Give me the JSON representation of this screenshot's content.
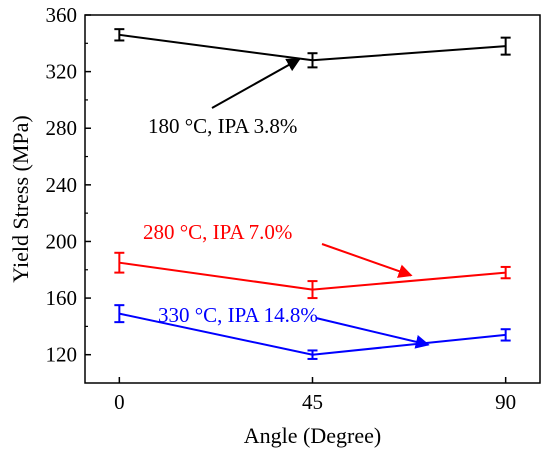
{
  "chart_data": {
    "type": "line",
    "xlabel": "Angle (Degree)",
    "ylabel": "Yield Stress (MPa)",
    "xlim": [
      -8,
      98
    ],
    "ylim": [
      100,
      360
    ],
    "xticks": [
      0,
      45,
      90
    ],
    "yticks": [
      120,
      160,
      200,
      240,
      280,
      320,
      360
    ],
    "x": [
      0,
      45,
      90
    ],
    "grid": false,
    "legend": "none",
    "series": [
      {
        "label": "180 °C, IPA 3.8%",
        "color": "#000000",
        "values": [
          346,
          328,
          338
        ],
        "errors": [
          4,
          5,
          6
        ],
        "arrow_to": [
          42,
          329
        ]
      },
      {
        "label": "280 °C, IPA 7.0%",
        "color": "#ff0000",
        "values": [
          185,
          166,
          178
        ],
        "errors": [
          7,
          6,
          4
        ],
        "arrow_to": [
          68,
          176
        ]
      },
      {
        "label": "330 °C, IPA 14.8%",
        "color": "#0000ff",
        "values": [
          149,
          120,
          134
        ],
        "errors": [
          6,
          3,
          4
        ],
        "arrow_to": [
          72,
          127
        ]
      }
    ]
  }
}
